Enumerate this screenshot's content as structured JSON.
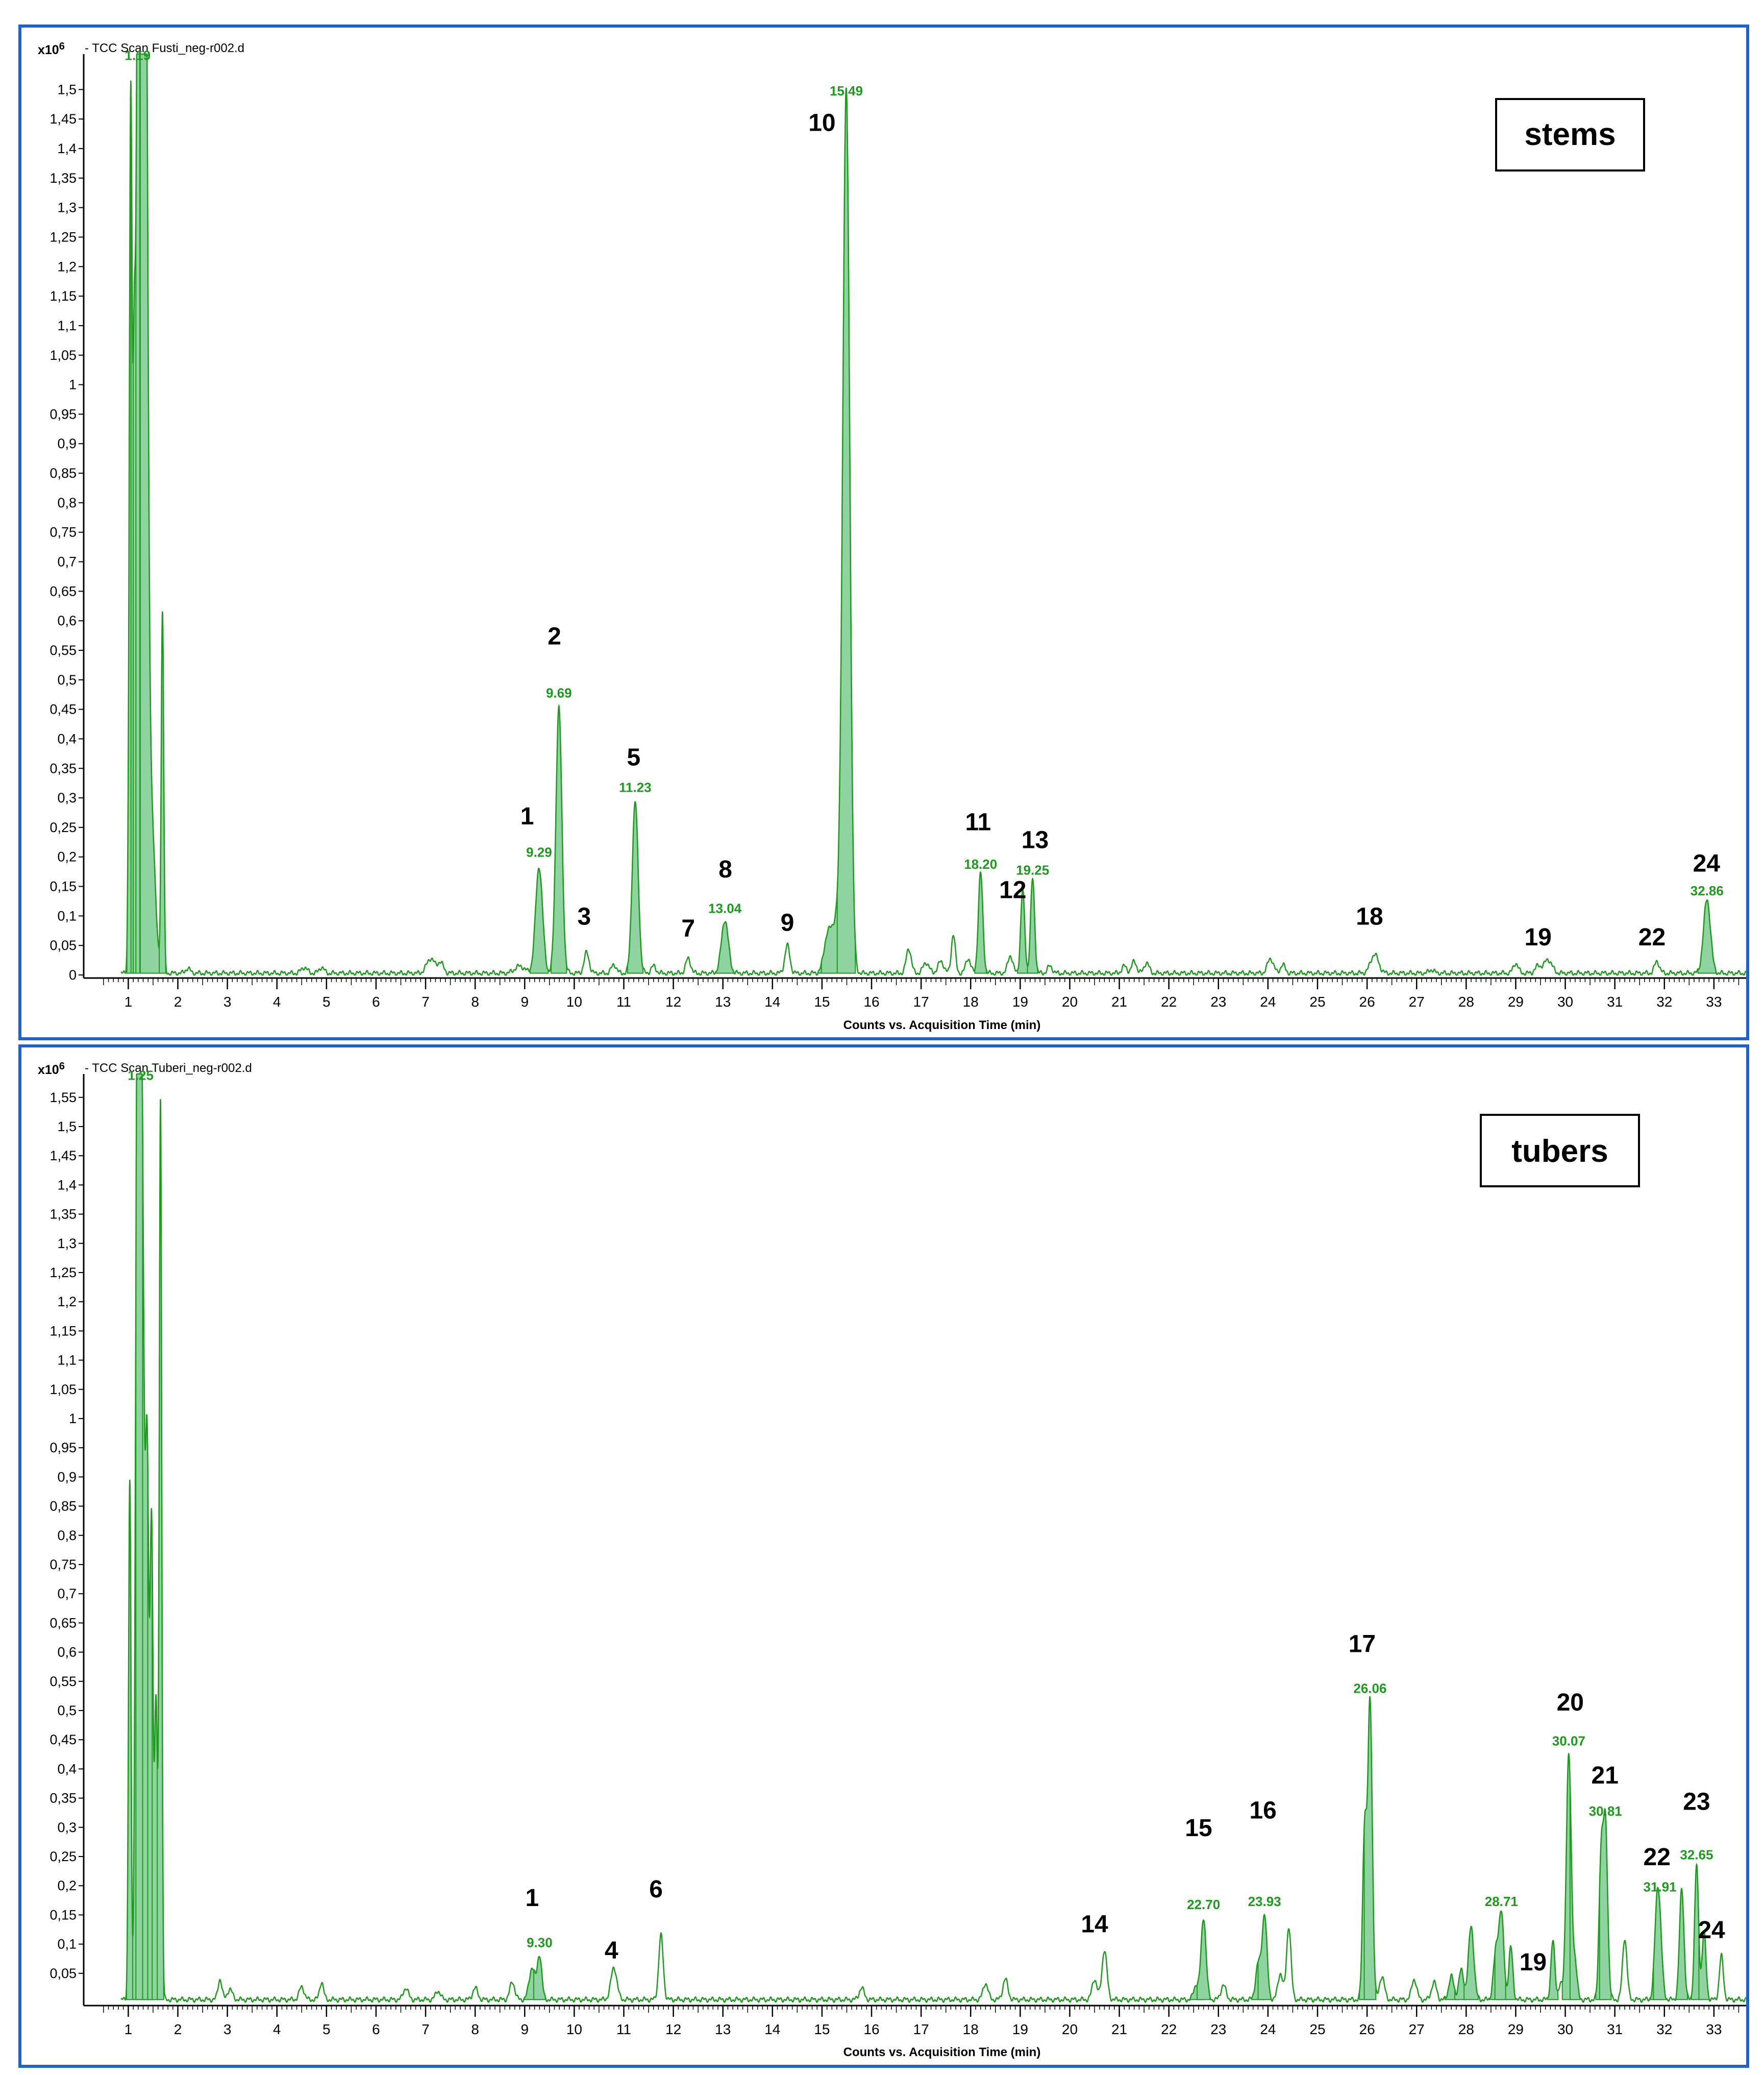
{
  "colors": {
    "trace": "#1e9a1e",
    "fill": "#8fd3a0",
    "frame": "#1f63c6",
    "axis": "#000000"
  },
  "chart_data": [
    {
      "type": "line",
      "trace_title": "- TCC Scan Fusti_neg-r002.d",
      "sample_label": "stems",
      "multiplier": "x10",
      "multiplier_exp": "6",
      "xlabel": "Counts vs. Acquisition Time (min)",
      "ylabel": "",
      "xlim": [
        0.1,
        33.65
      ],
      "ylim": [
        0,
        1.56
      ],
      "x_ticks": [
        1,
        2,
        3,
        4,
        5,
        6,
        7,
        8,
        9,
        10,
        11,
        12,
        13,
        14,
        15,
        16,
        17,
        18,
        19,
        20,
        21,
        22,
        23,
        24,
        25,
        26,
        27,
        28,
        29,
        30,
        31,
        32,
        33
      ],
      "y_ticks": [
        0,
        0.05,
        0.1,
        0.15,
        0.2,
        0.25,
        0.3,
        0.35,
        0.4,
        0.45,
        0.5,
        0.55,
        0.6,
        0.65,
        0.7,
        0.75,
        0.8,
        0.85,
        0.9,
        0.95,
        1,
        1.05,
        1.1,
        1.15,
        1.2,
        1.25,
        1.3,
        1.35,
        1.4,
        1.45,
        1.5
      ],
      "y_tick_labels": [
        "0",
        "0,05",
        "0,1",
        "0,15",
        "0,2",
        "0,25",
        "0,3",
        "0,35",
        "0,4",
        "0,45",
        "0,5",
        "0,55",
        "0,6",
        "0,65",
        "0,7",
        "0,75",
        "0,8",
        "0,85",
        "0,9",
        "0,95",
        "1",
        "1,05",
        "1,1",
        "1,15",
        "1,2",
        "1,25",
        "1,3",
        "1,35",
        "1,4",
        "1,45",
        "1,5"
      ],
      "baseline": 0.003,
      "peaks": [
        {
          "rt": 1.05,
          "h": 1.49,
          "w": 0.03,
          "fill": true
        },
        {
          "rt": 1.12,
          "h": 0.84,
          "w": 0.025,
          "fill": true
        },
        {
          "rt": 1.19,
          "h": 1.56,
          "w": 0.035,
          "fill": true
        },
        {
          "rt": 1.27,
          "h": 1.56,
          "w": 0.045,
          "fill": true
        },
        {
          "rt": 1.35,
          "h": 1.56,
          "w": 0.045,
          "fill": true
        },
        {
          "rt": 1.45,
          "h": 0.3,
          "w": 0.08,
          "fill": true
        },
        {
          "rt": 1.69,
          "h": 0.61,
          "w": 0.025,
          "fill": true
        },
        {
          "rt": 2.2,
          "h": 0.008,
          "w": 0.05,
          "fill": false
        },
        {
          "rt": 4.55,
          "h": 0.01,
          "w": 0.06,
          "fill": false
        },
        {
          "rt": 4.9,
          "h": 0.01,
          "w": 0.05,
          "fill": false
        },
        {
          "rt": 7.1,
          "h": 0.025,
          "w": 0.08,
          "fill": false
        },
        {
          "rt": 7.3,
          "h": 0.018,
          "w": 0.06,
          "fill": false
        },
        {
          "rt": 8.9,
          "h": 0.012,
          "w": 0.1,
          "fill": false
        },
        {
          "rt": 9.29,
          "h": 0.18,
          "w": 0.07,
          "fill": true
        },
        {
          "rt": 9.69,
          "h": 0.45,
          "w": 0.06,
          "fill": true
        },
        {
          "rt": 10.25,
          "h": 0.035,
          "w": 0.05,
          "fill": false
        },
        {
          "rt": 10.8,
          "h": 0.015,
          "w": 0.05,
          "fill": false
        },
        {
          "rt": 11.23,
          "h": 0.29,
          "w": 0.06,
          "fill": true
        },
        {
          "rt": 11.6,
          "h": 0.012,
          "w": 0.05,
          "fill": false
        },
        {
          "rt": 12.3,
          "h": 0.025,
          "w": 0.05,
          "fill": false
        },
        {
          "rt": 13.04,
          "h": 0.09,
          "w": 0.07,
          "fill": true
        },
        {
          "rt": 14.3,
          "h": 0.047,
          "w": 0.05,
          "fill": false
        },
        {
          "rt": 15.1,
          "h": 0.045,
          "w": 0.07,
          "fill": true
        },
        {
          "rt": 15.3,
          "h": 0.09,
          "w": 0.12,
          "fill": true
        },
        {
          "rt": 15.49,
          "h": 1.47,
          "w": 0.07,
          "fill": true
        },
        {
          "rt": 16.75,
          "h": 0.042,
          "w": 0.05,
          "fill": false
        },
        {
          "rt": 17.1,
          "h": 0.018,
          "w": 0.06,
          "fill": false
        },
        {
          "rt": 17.4,
          "h": 0.02,
          "w": 0.06,
          "fill": false
        },
        {
          "rt": 17.65,
          "h": 0.066,
          "w": 0.04,
          "fill": false
        },
        {
          "rt": 17.95,
          "h": 0.025,
          "w": 0.05,
          "fill": false
        },
        {
          "rt": 18.2,
          "h": 0.17,
          "w": 0.045,
          "fill": true
        },
        {
          "rt": 18.8,
          "h": 0.03,
          "w": 0.05,
          "fill": false
        },
        {
          "rt": 19.05,
          "h": 0.14,
          "w": 0.04,
          "fill": true
        },
        {
          "rt": 19.25,
          "h": 0.16,
          "w": 0.04,
          "fill": true
        },
        {
          "rt": 19.6,
          "h": 0.012,
          "w": 0.05,
          "fill": false
        },
        {
          "rt": 21.1,
          "h": 0.012,
          "w": 0.05,
          "fill": false
        },
        {
          "rt": 21.3,
          "h": 0.02,
          "w": 0.05,
          "fill": false
        },
        {
          "rt": 21.55,
          "h": 0.018,
          "w": 0.05,
          "fill": false
        },
        {
          "rt": 24.05,
          "h": 0.025,
          "w": 0.06,
          "fill": false
        },
        {
          "rt": 24.3,
          "h": 0.014,
          "w": 0.05,
          "fill": false
        },
        {
          "rt": 26.15,
          "h": 0.032,
          "w": 0.08,
          "fill": false
        },
        {
          "rt": 27.3,
          "h": 0.006,
          "w": 0.05,
          "fill": false
        },
        {
          "rt": 29.0,
          "h": 0.017,
          "w": 0.05,
          "fill": false
        },
        {
          "rt": 29.45,
          "h": 0.012,
          "w": 0.06,
          "fill": false
        },
        {
          "rt": 29.65,
          "h": 0.023,
          "w": 0.08,
          "fill": false
        },
        {
          "rt": 31.85,
          "h": 0.02,
          "w": 0.05,
          "fill": false
        },
        {
          "rt": 32.86,
          "h": 0.125,
          "w": 0.07,
          "fill": true
        }
      ],
      "rt_labels": [
        {
          "x": 1.19,
          "y": 1.55,
          "t": "1.19"
        },
        {
          "x": 9.29,
          "y": 0.2,
          "t": "9.29"
        },
        {
          "x": 9.69,
          "y": 0.47,
          "t": "9.69"
        },
        {
          "x": 11.23,
          "y": 0.31,
          "t": "11.23"
        },
        {
          "x": 13.04,
          "y": 0.105,
          "t": "13.04"
        },
        {
          "x": 15.49,
          "y": 1.49,
          "t": "15.49"
        },
        {
          "x": 18.2,
          "y": 0.18,
          "t": "18.20"
        },
        {
          "x": 19.25,
          "y": 0.17,
          "t": "19.25"
        },
        {
          "x": 32.86,
          "y": 0.135,
          "t": "32.86"
        }
      ],
      "peak_numbers": [
        {
          "x": 9.05,
          "y": 0.255,
          "t": "1"
        },
        {
          "x": 9.6,
          "y": 0.56,
          "t": "2"
        },
        {
          "x": 10.2,
          "y": 0.085,
          "t": "3"
        },
        {
          "x": 11.2,
          "y": 0.355,
          "t": "5"
        },
        {
          "x": 12.3,
          "y": 0.065,
          "t": "7"
        },
        {
          "x": 13.05,
          "y": 0.165,
          "t": "8"
        },
        {
          "x": 14.3,
          "y": 0.075,
          "t": "9"
        },
        {
          "x": 15.0,
          "y": 1.43,
          "t": "10"
        },
        {
          "x": 18.15,
          "y": 0.245,
          "t": "11"
        },
        {
          "x": 18.85,
          "y": 0.13,
          "t": "12"
        },
        {
          "x": 19.3,
          "y": 0.215,
          "t": "13"
        },
        {
          "x": 26.05,
          "y": 0.085,
          "t": "18"
        },
        {
          "x": 29.45,
          "y": 0.05,
          "t": "19"
        },
        {
          "x": 31.75,
          "y": 0.05,
          "t": "22"
        },
        {
          "x": 32.85,
          "y": 0.175,
          "t": "24"
        }
      ]
    },
    {
      "type": "line",
      "trace_title": "- TCC Scan Tuberi_neg-r002.d",
      "sample_label": "tubers",
      "multiplier": "x10",
      "multiplier_exp": "6",
      "xlabel": "Counts vs. Acquisition Time (min)",
      "ylabel": "",
      "xlim": [
        0.1,
        33.65
      ],
      "ylim": [
        0,
        1.59
      ],
      "x_ticks": [
        1,
        2,
        3,
        4,
        5,
        6,
        7,
        8,
        9,
        10,
        11,
        12,
        13,
        14,
        15,
        16,
        17,
        18,
        19,
        20,
        21,
        22,
        23,
        24,
        25,
        26,
        27,
        28,
        29,
        30,
        31,
        32,
        33
      ],
      "y_ticks": [
        0.05,
        0.1,
        0.15,
        0.2,
        0.25,
        0.3,
        0.35,
        0.4,
        0.45,
        0.5,
        0.55,
        0.6,
        0.65,
        0.7,
        0.75,
        0.8,
        0.85,
        0.9,
        0.95,
        1,
        1.05,
        1.1,
        1.15,
        1.2,
        1.25,
        1.3,
        1.35,
        1.4,
        1.45,
        1.5,
        1.55
      ],
      "y_tick_labels": [
        "0,05",
        "0,1",
        "0,15",
        "0,2",
        "0,25",
        "0,3",
        "0,35",
        "0,4",
        "0,45",
        "0,5",
        "0,55",
        "0,6",
        "0,65",
        "0,7",
        "0,75",
        "0,8",
        "0,85",
        "0,9",
        "0,95",
        "1",
        "1,05",
        "1,1",
        "1,15",
        "1,2",
        "1,25",
        "1,3",
        "1,35",
        "1,4",
        "1,45",
        "1,5",
        "1,55"
      ],
      "baseline": 0.005,
      "peaks": [
        {
          "rt": 1.03,
          "h": 0.89,
          "w": 0.025,
          "fill": true
        },
        {
          "rt": 1.18,
          "h": 1.59,
          "w": 0.035,
          "fill": true
        },
        {
          "rt": 1.27,
          "h": 1.59,
          "w": 0.045,
          "fill": true
        },
        {
          "rt": 1.38,
          "h": 0.9,
          "w": 0.035,
          "fill": true
        },
        {
          "rt": 1.47,
          "h": 0.8,
          "w": 0.03,
          "fill": true
        },
        {
          "rt": 1.56,
          "h": 0.51,
          "w": 0.03,
          "fill": true
        },
        {
          "rt": 1.65,
          "h": 1.54,
          "w": 0.025,
          "fill": true
        },
        {
          "rt": 2.85,
          "h": 0.035,
          "w": 0.04,
          "fill": false
        },
        {
          "rt": 3.05,
          "h": 0.018,
          "w": 0.05,
          "fill": false
        },
        {
          "rt": 4.5,
          "h": 0.022,
          "w": 0.05,
          "fill": false
        },
        {
          "rt": 4.9,
          "h": 0.03,
          "w": 0.04,
          "fill": false
        },
        {
          "rt": 6.6,
          "h": 0.02,
          "w": 0.05,
          "fill": false
        },
        {
          "rt": 7.25,
          "h": 0.015,
          "w": 0.05,
          "fill": false
        },
        {
          "rt": 8.0,
          "h": 0.02,
          "w": 0.05,
          "fill": false
        },
        {
          "rt": 8.75,
          "h": 0.03,
          "w": 0.05,
          "fill": false
        },
        {
          "rt": 9.15,
          "h": 0.055,
          "w": 0.06,
          "fill": true
        },
        {
          "rt": 9.3,
          "h": 0.075,
          "w": 0.045,
          "fill": true
        },
        {
          "rt": 10.8,
          "h": 0.055,
          "w": 0.06,
          "fill": false
        },
        {
          "rt": 11.75,
          "h": 0.11,
          "w": 0.045,
          "fill": false
        },
        {
          "rt": 15.8,
          "h": 0.02,
          "w": 0.05,
          "fill": false
        },
        {
          "rt": 18.3,
          "h": 0.028,
          "w": 0.05,
          "fill": false
        },
        {
          "rt": 18.7,
          "h": 0.035,
          "w": 0.05,
          "fill": false
        },
        {
          "rt": 20.5,
          "h": 0.035,
          "w": 0.05,
          "fill": false
        },
        {
          "rt": 20.7,
          "h": 0.085,
          "w": 0.05,
          "fill": false
        },
        {
          "rt": 22.55,
          "h": 0.025,
          "w": 0.05,
          "fill": true
        },
        {
          "rt": 22.7,
          "h": 0.14,
          "w": 0.05,
          "fill": true
        },
        {
          "rt": 23.1,
          "h": 0.025,
          "w": 0.05,
          "fill": false
        },
        {
          "rt": 23.8,
          "h": 0.06,
          "w": 0.05,
          "fill": true
        },
        {
          "rt": 23.93,
          "h": 0.145,
          "w": 0.05,
          "fill": true
        },
        {
          "rt": 24.25,
          "h": 0.045,
          "w": 0.05,
          "fill": false
        },
        {
          "rt": 24.42,
          "h": 0.125,
          "w": 0.045,
          "fill": false
        },
        {
          "rt": 25.95,
          "h": 0.29,
          "w": 0.04,
          "fill": true
        },
        {
          "rt": 26.06,
          "h": 0.51,
          "w": 0.045,
          "fill": true
        },
        {
          "rt": 26.3,
          "h": 0.04,
          "w": 0.05,
          "fill": false
        },
        {
          "rt": 26.95,
          "h": 0.035,
          "w": 0.05,
          "fill": false
        },
        {
          "rt": 27.35,
          "h": 0.03,
          "w": 0.05,
          "fill": false
        },
        {
          "rt": 27.7,
          "h": 0.04,
          "w": 0.05,
          "fill": true
        },
        {
          "rt": 27.9,
          "h": 0.05,
          "w": 0.05,
          "fill": true
        },
        {
          "rt": 28.1,
          "h": 0.125,
          "w": 0.055,
          "fill": true
        },
        {
          "rt": 28.6,
          "h": 0.08,
          "w": 0.05,
          "fill": true
        },
        {
          "rt": 28.71,
          "h": 0.145,
          "w": 0.05,
          "fill": true
        },
        {
          "rt": 28.9,
          "h": 0.09,
          "w": 0.04,
          "fill": true
        },
        {
          "rt": 29.75,
          "h": 0.1,
          "w": 0.04,
          "fill": true
        },
        {
          "rt": 29.9,
          "h": 0.025,
          "w": 0.04,
          "fill": false
        },
        {
          "rt": 30.07,
          "h": 0.42,
          "w": 0.05,
          "fill": true
        },
        {
          "rt": 30.2,
          "h": 0.06,
          "w": 0.04,
          "fill": true
        },
        {
          "rt": 30.72,
          "h": 0.23,
          "w": 0.04,
          "fill": true
        },
        {
          "rt": 30.81,
          "h": 0.3,
          "w": 0.045,
          "fill": true
        },
        {
          "rt": 31.2,
          "h": 0.105,
          "w": 0.045,
          "fill": false
        },
        {
          "rt": 31.85,
          "h": 0.14,
          "w": 0.05,
          "fill": true
        },
        {
          "rt": 31.91,
          "h": 0.09,
          "w": 0.05,
          "fill": true
        },
        {
          "rt": 32.35,
          "h": 0.19,
          "w": 0.045,
          "fill": true
        },
        {
          "rt": 32.65,
          "h": 0.23,
          "w": 0.04,
          "fill": true
        },
        {
          "rt": 32.8,
          "h": 0.115,
          "w": 0.04,
          "fill": true
        },
        {
          "rt": 33.15,
          "h": 0.075,
          "w": 0.04,
          "fill": false
        }
      ],
      "rt_labels": [
        {
          "x": 1.25,
          "y": 1.58,
          "t": "1.25"
        },
        {
          "x": 9.3,
          "y": 0.095,
          "t": "9.30"
        },
        {
          "x": 22.7,
          "y": 0.16,
          "t": "22.70"
        },
        {
          "x": 23.93,
          "y": 0.165,
          "t": "23.93"
        },
        {
          "x": 26.06,
          "y": 0.53,
          "t": "26.06"
        },
        {
          "x": 28.71,
          "y": 0.165,
          "t": "28.71"
        },
        {
          "x": 30.07,
          "y": 0.44,
          "t": "30.07"
        },
        {
          "x": 30.81,
          "y": 0.32,
          "t": "30.81"
        },
        {
          "x": 31.91,
          "y": 0.19,
          "t": "31.91"
        },
        {
          "x": 32.65,
          "y": 0.245,
          "t": "32.65"
        }
      ],
      "peak_numbers": [
        {
          "x": 9.15,
          "y": 0.165,
          "t": "1"
        },
        {
          "x": 10.75,
          "y": 0.075,
          "t": "4"
        },
        {
          "x": 11.65,
          "y": 0.18,
          "t": "6"
        },
        {
          "x": 20.5,
          "y": 0.12,
          "t": "14"
        },
        {
          "x": 22.6,
          "y": 0.285,
          "t": "15"
        },
        {
          "x": 23.9,
          "y": 0.315,
          "t": "16"
        },
        {
          "x": 25.9,
          "y": 0.6,
          "t": "17"
        },
        {
          "x": 30.1,
          "y": 0.5,
          "t": "20"
        },
        {
          "x": 30.8,
          "y": 0.375,
          "t": "21"
        },
        {
          "x": 29.35,
          "y": 0.055,
          "t": "19"
        },
        {
          "x": 31.85,
          "y": 0.235,
          "t": "22"
        },
        {
          "x": 32.65,
          "y": 0.33,
          "t": "23"
        },
        {
          "x": 32.95,
          "y": 0.11,
          "t": "24"
        }
      ]
    }
  ]
}
